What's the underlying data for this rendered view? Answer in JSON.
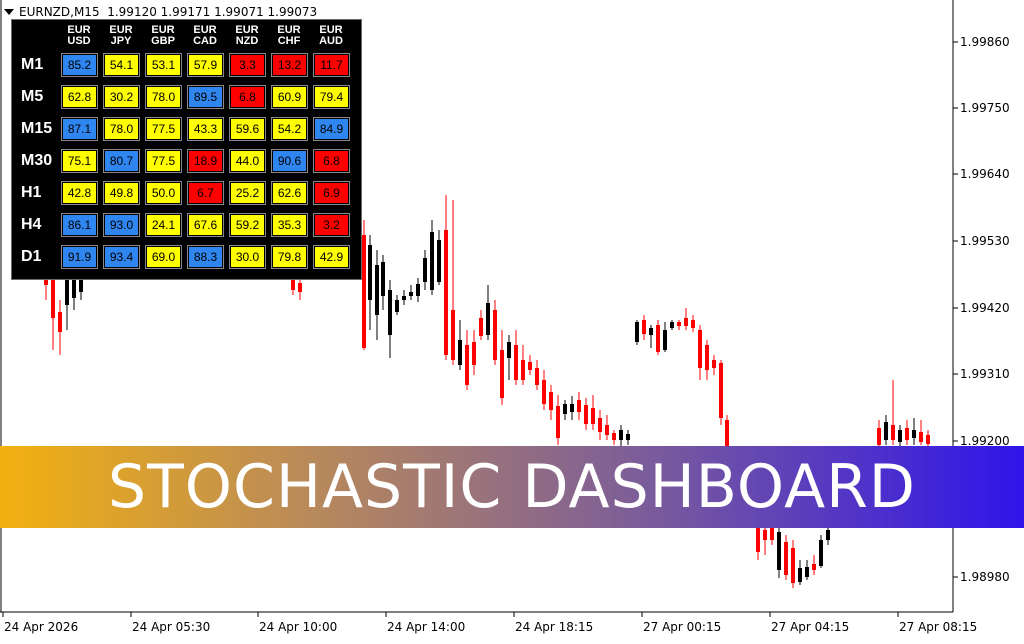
{
  "header": {
    "symbol": "EURNZD,M15",
    "ohlc": "1.99120 1.99171 1.99071 1.99073"
  },
  "price_axis": {
    "labels": [
      "1.99860",
      "1.99750",
      "1.99640",
      "1.99530",
      "1.99420",
      "1.99310",
      "1.99200",
      "1.98980"
    ]
  },
  "time_axis": {
    "labels": [
      "24 Apr 2026",
      "24 Apr 05:30",
      "24 Apr 10:00",
      "24 Apr 14:00",
      "24 Apr 18:15",
      "27 Apr 00:15",
      "27 Apr 04:15",
      "27 Apr 08:15"
    ]
  },
  "dashboard": {
    "columns": [
      {
        "top": "EUR",
        "bottom": "USD"
      },
      {
        "top": "EUR",
        "bottom": "JPY"
      },
      {
        "top": "EUR",
        "bottom": "GBP"
      },
      {
        "top": "EUR",
        "bottom": "CAD"
      },
      {
        "top": "EUR",
        "bottom": "NZD"
      },
      {
        "top": "EUR",
        "bottom": "CHF"
      },
      {
        "top": "EUR",
        "bottom": "AUD"
      }
    ],
    "rows": [
      {
        "tf": "M1",
        "values": [
          "85.2",
          "54.1",
          "53.1",
          "57.9",
          "3.3",
          "13.2",
          "11.7"
        ]
      },
      {
        "tf": "M5",
        "values": [
          "62.8",
          "30.2",
          "78.0",
          "89.5",
          "6.8",
          "60.9",
          "79.4"
        ]
      },
      {
        "tf": "M15",
        "values": [
          "87.1",
          "78.0",
          "77.5",
          "43.3",
          "59.6",
          "54.2",
          "84.9"
        ]
      },
      {
        "tf": "M30",
        "values": [
          "75.1",
          "80.7",
          "77.5",
          "18.9",
          "44.0",
          "90.6",
          "6.8"
        ]
      },
      {
        "tf": "H1",
        "values": [
          "42.8",
          "49.8",
          "50.0",
          "6.7",
          "25.2",
          "62.6",
          "6.9"
        ]
      },
      {
        "tf": "H4",
        "values": [
          "86.1",
          "93.0",
          "24.1",
          "67.6",
          "59.2",
          "35.3",
          "3.2"
        ]
      },
      {
        "tf": "D1",
        "values": [
          "91.9",
          "93.4",
          "69.0",
          "88.3",
          "30.0",
          "79.8",
          "42.9"
        ]
      }
    ],
    "colors": {
      "high": "#2f86f0",
      "mid": "#ffff00",
      "low": "#ff0000"
    }
  },
  "banner": {
    "title": "STOCHASTIC DASHBOARD"
  },
  "chart_colors": {
    "bull": "#000000",
    "bear": "#ff0000"
  }
}
